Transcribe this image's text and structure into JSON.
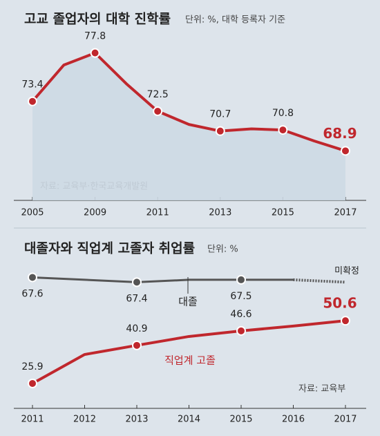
{
  "chart_data": [
    {
      "type": "line",
      "title": "고교 졸업자의 대학 진학률",
      "subtitle": "단위: %, 대학 등록자 기준",
      "source": "자료: 교육부·한국교육개발원",
      "categories": [
        "2005",
        null,
        "2009",
        null,
        "2011",
        null,
        "2013",
        null,
        "2015",
        null,
        "2017"
      ],
      "series": [
        {
          "name": null,
          "color": "#c0272d",
          "values": [
            73.4,
            76.7,
            77.8,
            75.0,
            72.5,
            71.3,
            70.7,
            70.9,
            70.8,
            69.8,
            68.9
          ],
          "value_labels": [
            "73.4",
            null,
            "77.8",
            null,
            "72.5",
            null,
            "70.7",
            null,
            "70.8",
            null,
            "68.9"
          ]
        }
      ],
      "ylim": [
        64.4,
        80.1
      ]
    },
    {
      "type": "line",
      "title": "대졸자와 직업계 고졸자 취업률",
      "subtitle": "단위: %",
      "source": "자료: 교육부",
      "annotation": "미확정",
      "categories": [
        "2011",
        "2012",
        "2013",
        "2014",
        "2015",
        "2016",
        "2017"
      ],
      "series": [
        {
          "name": "대졸",
          "color": "#555555",
          "axis": "y2",
          "values": [
            67.6,
            67.5,
            67.4,
            67.5,
            67.5,
            67.5,
            67.4
          ],
          "value_labels": [
            "67.6",
            null,
            "67.4",
            null,
            "67.5",
            null,
            null
          ]
        },
        {
          "name": "직업계 고졸",
          "color": "#c0272d",
          "values": [
            25.9,
            37.3,
            40.9,
            44.4,
            46.6,
            48.5,
            50.6
          ],
          "value_labels": [
            "25.9",
            null,
            "40.9",
            null,
            "46.6",
            null,
            "50.6"
          ]
        }
      ],
      "ylim": [
        15,
        55
      ],
      "y2lim": [
        62,
        68.8
      ]
    }
  ]
}
